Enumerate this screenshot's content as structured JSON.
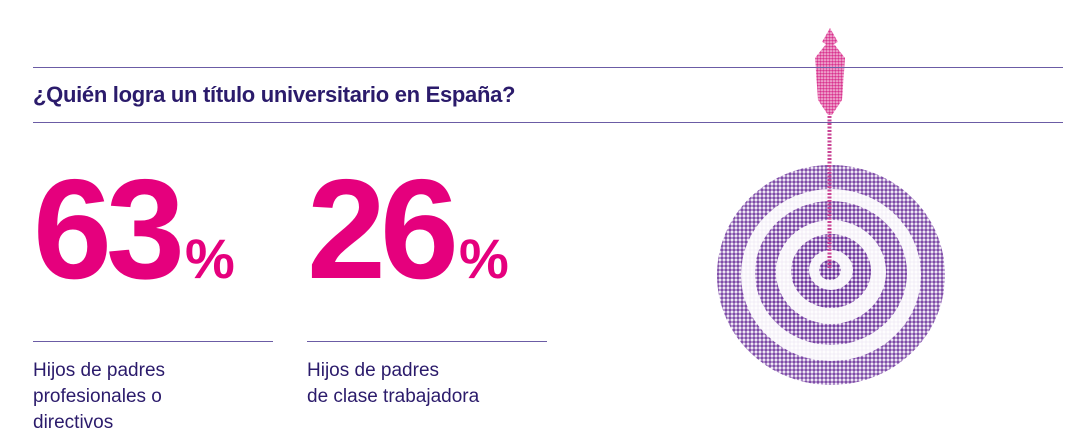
{
  "title": "¿Quién logra un título universitario en España?",
  "stats": [
    {
      "number": "63",
      "unit": "%",
      "label_lines": [
        "Hijos de padres",
        "profesionales o",
        "directivos"
      ]
    },
    {
      "number": "26",
      "unit": "%",
      "label_lines": [
        "Hijos de padres",
        "de clase trabajadora"
      ]
    }
  ]
}
